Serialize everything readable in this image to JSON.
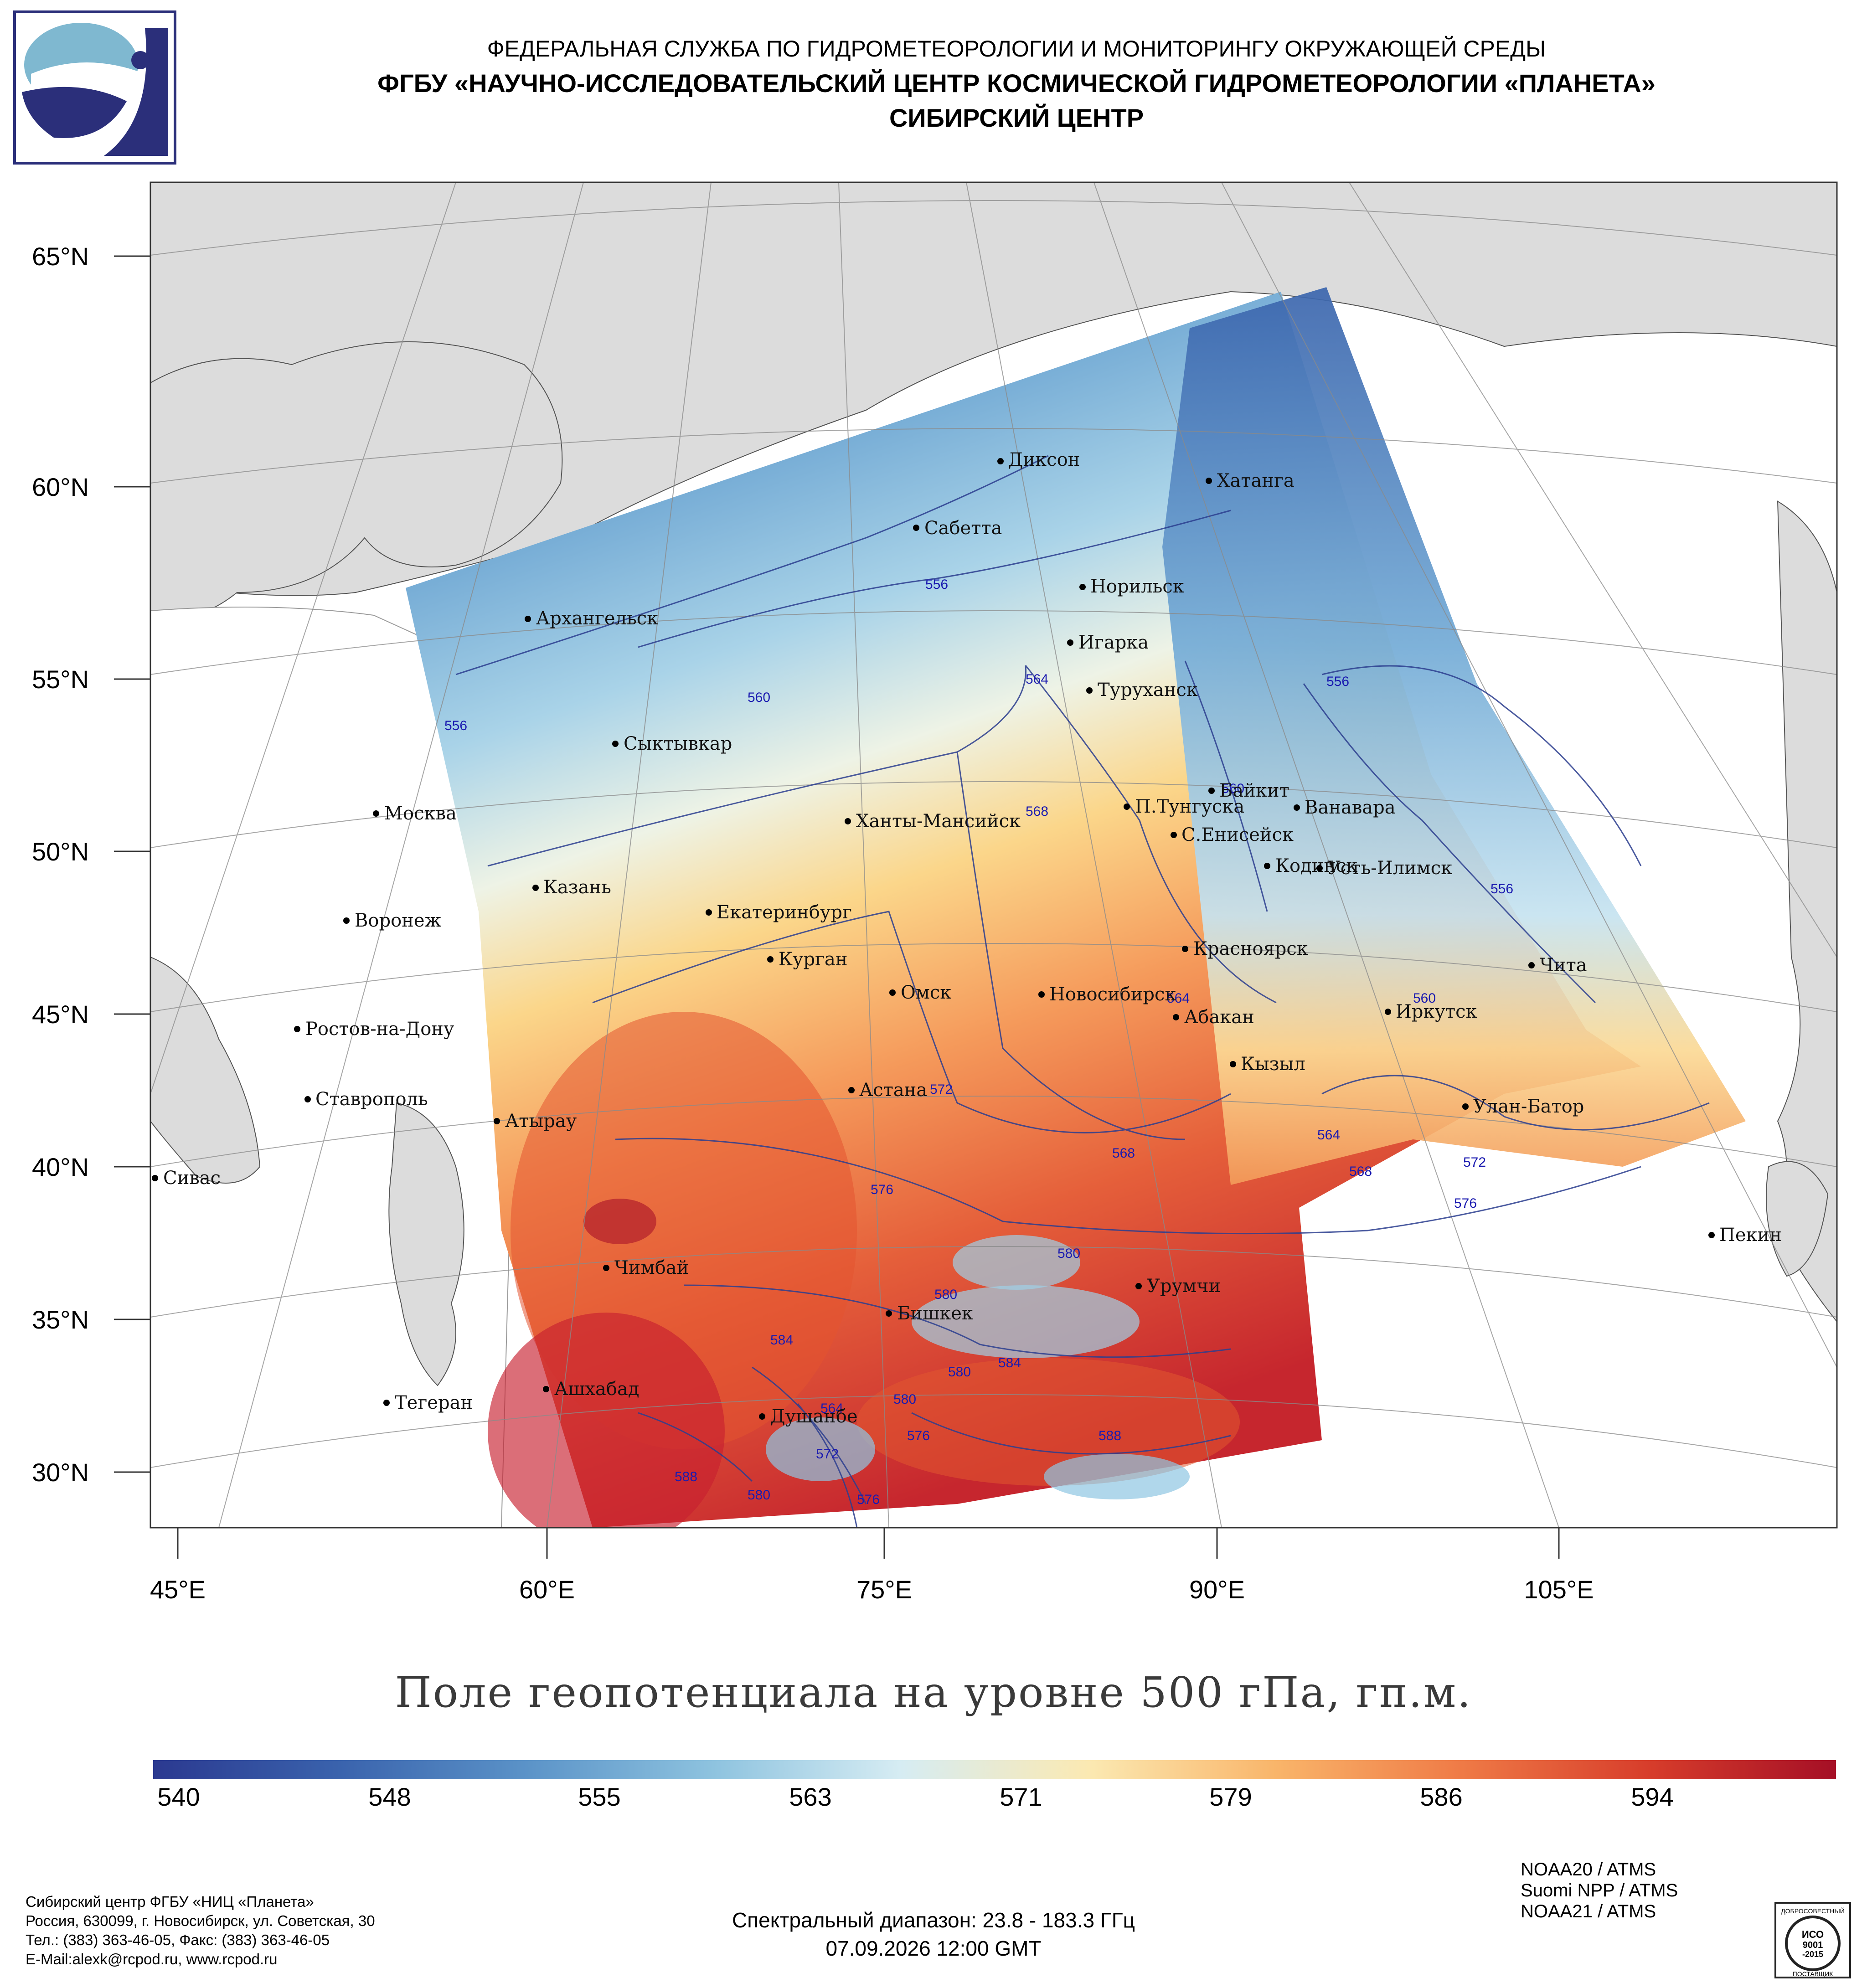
{
  "header": {
    "line1": "ФЕДЕРАЛЬНАЯ СЛУЖБА ПО ГИДРОМЕТЕОРОЛОГИИ И МОНИТОРИНГУ ОКРУЖАЮЩЕЙ СРЕДЫ",
    "line2": "ФГБУ «НАУЧНО-ИССЛЕДОВАТЕЛЬСКИЙ ЦЕНТР КОСМИЧЕСКОЙ ГИДРОМЕТЕОРОЛОГИИ «ПЛАНЕТА»",
    "line3": "СИБИРСКИЙ ЦЕНТР"
  },
  "map": {
    "lat_labels": [
      "65°N",
      "60°N",
      "55°N",
      "50°N",
      "45°N",
      "40°N",
      "35°N",
      "30°N"
    ],
    "lon_labels": [
      "45°E",
      "60°E",
      "75°E",
      "90°E",
      "105°E"
    ],
    "cities": [
      {
        "name": "Диксон"
      },
      {
        "name": "Хатанга"
      },
      {
        "name": "Сабетта"
      },
      {
        "name": "Норильск"
      },
      {
        "name": "Архангельск"
      },
      {
        "name": "Игарка"
      },
      {
        "name": "Туруханск"
      },
      {
        "name": "Сыктывкар"
      },
      {
        "name": "Байкит"
      },
      {
        "name": "П.Тунгуска"
      },
      {
        "name": "Ванавара"
      },
      {
        "name": "Москва"
      },
      {
        "name": "Ханты-Мансийск"
      },
      {
        "name": "С.Енисейск"
      },
      {
        "name": "Кодинск"
      },
      {
        "name": "Усть-Илимск"
      },
      {
        "name": "Казань"
      },
      {
        "name": "Екатеринбург"
      },
      {
        "name": "Воронеж"
      },
      {
        "name": "Красноярск"
      },
      {
        "name": "Курган"
      },
      {
        "name": "Чита"
      },
      {
        "name": "Омск"
      },
      {
        "name": "Новосибирск"
      },
      {
        "name": "Иркутск"
      },
      {
        "name": "Ростов-на-Дону"
      },
      {
        "name": "Абакан"
      },
      {
        "name": "Кызыл"
      },
      {
        "name": "Ставрополь"
      },
      {
        "name": "Астана"
      },
      {
        "name": "Улан-Батор"
      },
      {
        "name": "Атырау"
      },
      {
        "name": "Сивас"
      },
      {
        "name": "Пекин"
      },
      {
        "name": "Чимбай"
      },
      {
        "name": "Урумчи"
      },
      {
        "name": "Бишкек"
      },
      {
        "name": "Ашхабад"
      },
      {
        "name": "Тегеран"
      },
      {
        "name": "Душанбе"
      }
    ],
    "contours": [
      "556",
      "560",
      "556",
      "564",
      "556",
      "568",
      "560",
      "556",
      "560",
      "564",
      "564",
      "572",
      "568",
      "568",
      "572",
      "576",
      "576",
      "580",
      "580",
      "580",
      "584",
      "584",
      "580",
      "576",
      "588",
      "580",
      "572",
      "576",
      "588",
      "564"
    ]
  },
  "legend": {
    "title": "Поле геопотенциала на уровне 500 гПа, гп.м.",
    "ticks": [
      "540",
      "548",
      "555",
      "563",
      "571",
      "579",
      "586",
      "594"
    ],
    "colors": [
      "#2b3990",
      "#3a63ad",
      "#5b93c8",
      "#8ec3df",
      "#d6ecf3",
      "#fbe9b2",
      "#f9b56a",
      "#ef7a46",
      "#d73d2b",
      "#a50f26"
    ]
  },
  "footer": {
    "org_lines": [
      "Сибирский центр ФГБУ «НИЦ «Планета»",
      "Россия, 630099, г. Новосибирск, ул. Советская, 30",
      "Тел.: (383) 363-46-05, Факс: (383) 363-46-05",
      "E-Mail:alexk@rcpod.ru, www.rcpod.ru"
    ],
    "spectral": "Спектральный диапазон: 23.8 - 183.3 ГГц",
    "datetime": "07.09.2026 12:00 GMT",
    "satellites": [
      "NOAA20 / ATMS",
      "Suomi NPP / ATMS",
      "NOAA21 / ATMS"
    ],
    "iso_top": "ДОБРОСОВЕСТНЫЙ",
    "iso_mid1": "ИСО",
    "iso_mid2": "9001",
    "iso_mid3": "-2015",
    "iso_bottom": "ПОСТАВЩИК"
  }
}
